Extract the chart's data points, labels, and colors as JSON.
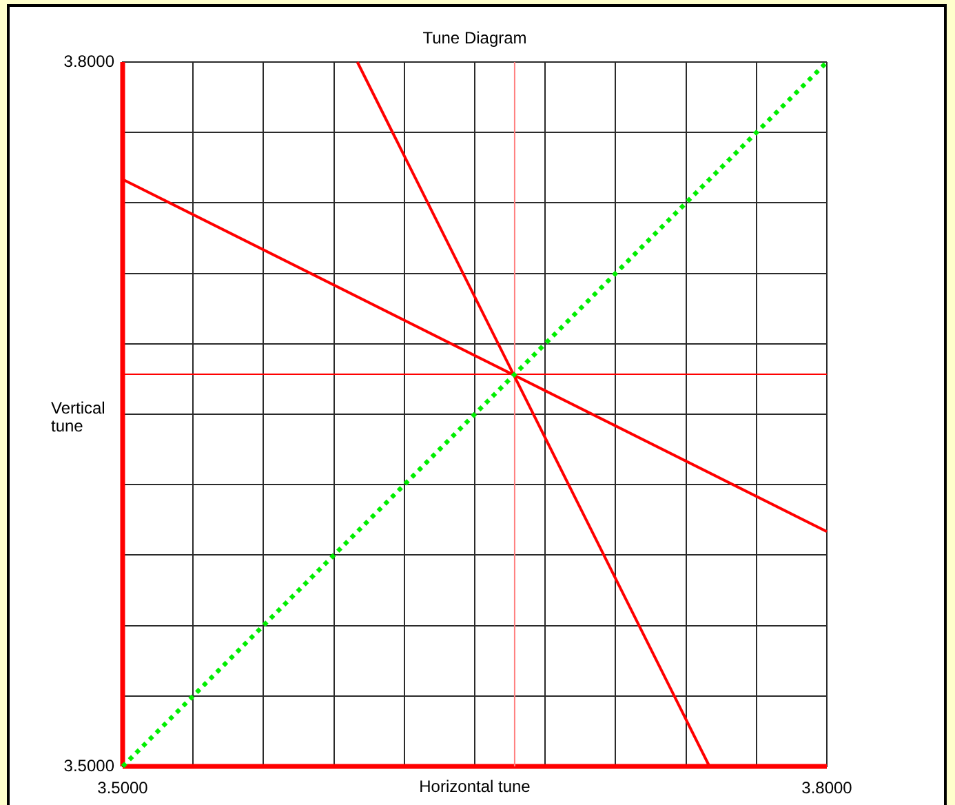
{
  "chart_data": {
    "type": "line",
    "title": "Tune Diagram",
    "xlabel": "Horizontal tune",
    "ylabel": "Vertical tune",
    "series": [
      {
        "color": "#ff0000",
        "x": [
          3.5,
          3.5
        ],
        "values": [
          3.5,
          3.8
        ]
      },
      {
        "color": "#ff0000",
        "x": [
          3.5,
          3.8
        ],
        "values": [
          3.5,
          3.5
        ]
      },
      {
        "color": "#ff8080",
        "x": [
          3.667,
          3.667
        ],
        "values": [
          3.5,
          3.8
        ]
      },
      {
        "color": "#ff0000",
        "x": [
          3.5,
          3.8
        ],
        "values": [
          3.667,
          3.667
        ]
      },
      {
        "color": "#ff0000",
        "x": [
          3.6,
          3.75
        ],
        "values": [
          3.8,
          3.5
        ]
      },
      {
        "color": "#ff0000",
        "x": [
          3.5,
          3.8
        ],
        "values": [
          3.75,
          3.6
        ]
      },
      {
        "color": "#00ee00",
        "x": [
          3.5,
          3.8
        ],
        "values": [
          3.5,
          3.8
        ],
        "line_style": "dotted"
      }
    ],
    "xlim": [
      3.5,
      3.8
    ],
    "ylim": [
      3.5,
      3.8
    ],
    "xticks": [
      {
        "value": 3.5,
        "label": "3.5000"
      },
      {
        "value": 3.53,
        "label": null
      },
      {
        "value": 3.56,
        "label": null
      },
      {
        "value": 3.59,
        "label": null
      },
      {
        "value": 3.62,
        "label": null
      },
      {
        "value": 3.65,
        "label": null
      },
      {
        "value": 3.68,
        "label": null
      },
      {
        "value": 3.71,
        "label": null
      },
      {
        "value": 3.74,
        "label": null
      },
      {
        "value": 3.77,
        "label": null
      },
      {
        "value": 3.8,
        "label": "3.8000"
      }
    ],
    "yticks": [
      {
        "value": 3.5,
        "label": "3.5000"
      },
      {
        "value": 3.53,
        "label": null
      },
      {
        "value": 3.56,
        "label": null
      },
      {
        "value": 3.59,
        "label": null
      },
      {
        "value": 3.62,
        "label": null
      },
      {
        "value": 3.65,
        "label": null
      },
      {
        "value": 3.68,
        "label": null
      },
      {
        "value": 3.71,
        "label": null
      },
      {
        "value": 3.74,
        "label": null
      },
      {
        "value": 3.77,
        "label": null
      },
      {
        "value": 3.8,
        "label": "3.8000"
      }
    ],
    "grid": true,
    "marker": "none",
    "line_style": "solid"
  }
}
